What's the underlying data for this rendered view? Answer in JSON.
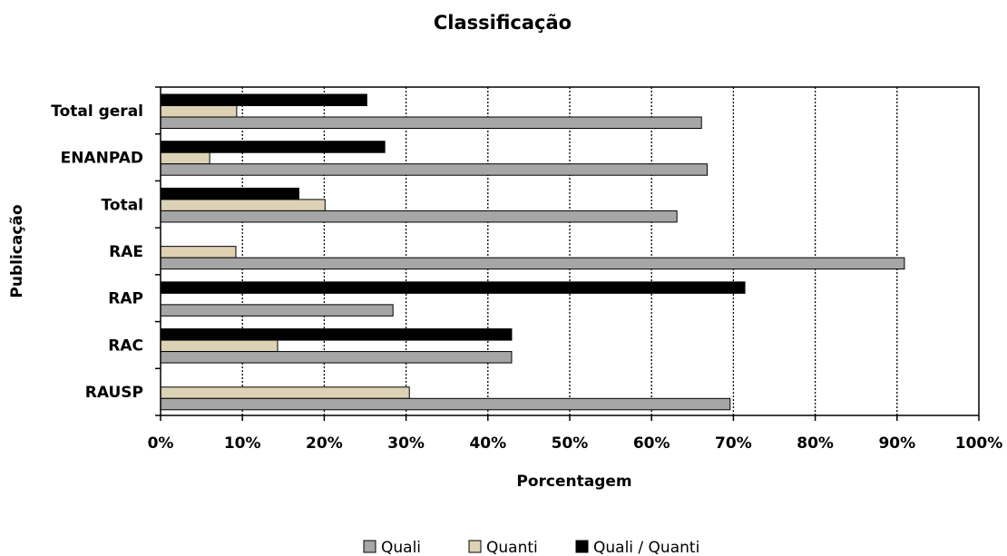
{
  "chart_data": {
    "type": "bar",
    "orientation": "horizontal",
    "title": "Classificação",
    "xlabel": "Porcentagem",
    "ylabel": "Publicação",
    "xlim": [
      0,
      100
    ],
    "x_ticks": [
      "0%",
      "10%",
      "20%",
      "30%",
      "40%",
      "50%",
      "60%",
      "70%",
      "80%",
      "90%",
      "100%"
    ],
    "grid": "vertical dotted",
    "legend_position": "bottom",
    "categories": [
      "Total geral",
      "ENANPAD",
      "Total",
      "RAE",
      "RAP",
      "RAC",
      "RAUSP"
    ],
    "series": [
      {
        "name": "Quali / Quanti",
        "color": "#000000",
        "values": [
          25.2,
          27.4,
          16.9,
          0,
          71.4,
          42.9,
          0
        ]
      },
      {
        "name": "Quanti",
        "color": "#ddd3b4",
        "values": [
          9.3,
          6.0,
          20.1,
          9.2,
          0,
          14.3,
          30.4
        ]
      },
      {
        "name": "Quali",
        "color": "#a6a6a6",
        "values": [
          66.1,
          66.8,
          63.1,
          90.9,
          28.4,
          42.9,
          69.6
        ]
      }
    ],
    "legend_order": [
      "Quali",
      "Quanti",
      "Quali / Quanti"
    ]
  }
}
